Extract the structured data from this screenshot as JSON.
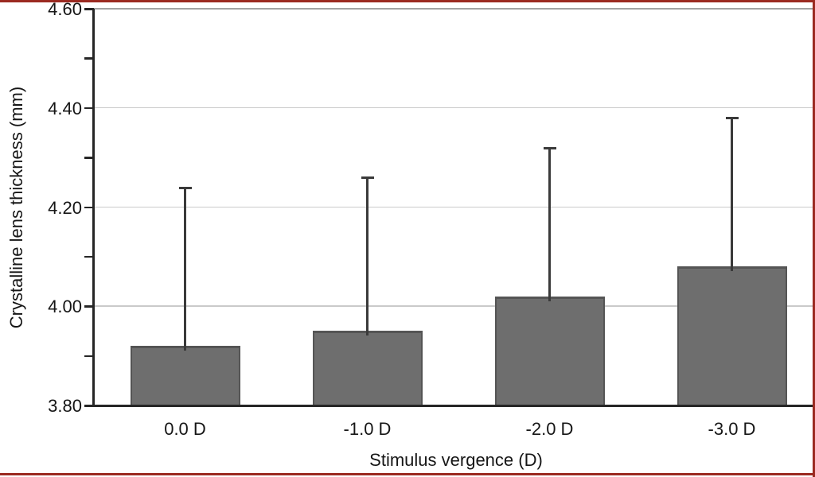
{
  "figure": {
    "background": "#ffffff",
    "border_color": "#9b2a21",
    "text_color": "#161616"
  },
  "chart_data": {
    "type": "bar",
    "title": "",
    "categories": [
      "0.0 D",
      "-1.0 D",
      "-2.0 D",
      "-3.0 D"
    ],
    "values": [
      3.92,
      3.95,
      4.02,
      4.08
    ],
    "error_upper": [
      4.24,
      4.26,
      4.32,
      4.38
    ],
    "xlabel": "Stimulus vergence (D)",
    "ylabel": "Crystalline lens thickness (mm)",
    "ylim": [
      3.8,
      4.6
    ],
    "ytick_values": [
      4.6,
      4.4,
      4.2,
      4.0,
      3.8
    ],
    "ytick_labels": [
      "4.60",
      "4.40",
      "4.20",
      "4.00",
      "3.80"
    ],
    "minor_tick_step": 0.1,
    "grid": "horizontal-major",
    "legend": "none",
    "bar_color": "#6e6e6e",
    "bar_edge_color": "#555555",
    "error_color": "#3a3a3a",
    "axis_color": "#262626",
    "gridline_color": "#cacaca",
    "top_line_color": "#a2a2a2"
  }
}
